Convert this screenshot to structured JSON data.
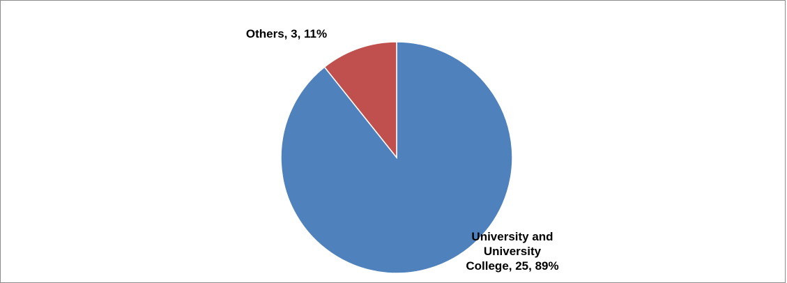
{
  "chart_data": {
    "type": "pie",
    "title": "",
    "slices": [
      {
        "name": "University and University College",
        "value": 25,
        "percent": 89,
        "color": "#4F81BD",
        "label_lines": [
          "University and",
          "University",
          "College, 25, 89%"
        ]
      },
      {
        "name": "Others",
        "value": 3,
        "percent": 11,
        "color": "#C0504D",
        "label_lines": [
          "Others, 3, 11%"
        ]
      }
    ],
    "start_angle": "12 o'clock",
    "direction": "clockwise",
    "legend": "none",
    "data_labels": "category, value, percentage"
  }
}
